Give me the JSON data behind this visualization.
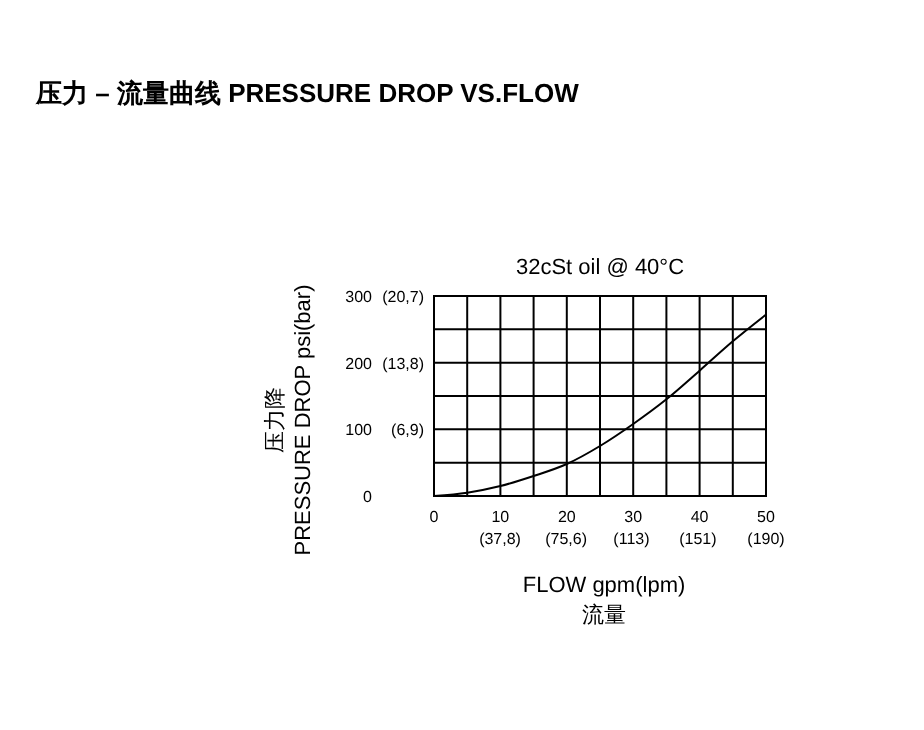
{
  "chart_data": {
    "type": "line",
    "title": "压力 – 流量曲线 PRESSURE DROP VS.FLOW",
    "subtitle": "32cSt oil @ 40°C",
    "xlabel": "FLOW  gpm(lpm)\n流量",
    "ylabel": "压力降\nPRESSURE DROP   psi(bar)",
    "x": [
      0,
      5,
      10,
      15,
      20,
      25,
      30,
      35,
      40,
      45,
      50
    ],
    "series": [
      {
        "color": "#000000",
        "values": [
          0,
          5,
          15,
          30,
          48,
          75,
          108,
          145,
          188,
          232,
          272
        ]
      }
    ],
    "xlim": [
      0,
      50
    ],
    "ylim": [
      0,
      300
    ],
    "xticks": [
      0,
      {
        "value": 5,
        "label": null
      },
      10,
      {
        "value": 15,
        "label": null
      },
      20,
      {
        "value": 25,
        "label": null
      },
      30,
      {
        "value": 35,
        "label": null
      },
      40,
      {
        "value": 45,
        "label": null
      },
      50
    ],
    "x2lim": [
      0,
      190
    ],
    "x2ticks": [
      {
        "value": 37.8,
        "label": "(37,8)"
      },
      {
        "value": 75.6,
        "label": "(75,6)"
      },
      {
        "value": 113,
        "label": "(113)"
      },
      {
        "value": 151,
        "label": "(151)"
      },
      {
        "value": 190,
        "label": "(190)"
      }
    ],
    "yticks": [
      0,
      {
        "value": 50,
        "label": null
      },
      100,
      {
        "value": 150,
        "label": null
      },
      200,
      {
        "value": 250,
        "label": null
      },
      300
    ],
    "y2lim": [
      0,
      20.7
    ],
    "y2ticks": [
      {
        "value": 6.9,
        "label": "(6,9)"
      },
      {
        "value": 13.8,
        "label": "(13,8)"
      },
      {
        "value": 20.7,
        "label": "(20,7)"
      }
    ],
    "grid": true,
    "marker": "none",
    "line_style": "solid"
  }
}
